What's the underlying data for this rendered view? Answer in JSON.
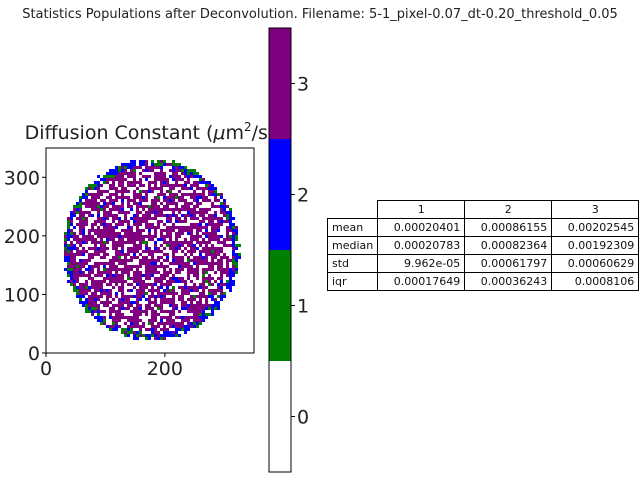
{
  "suptitle": "Statistics Populations after Deconvolution. Filename: 5-1_pixel-0.07_dt-0.20_threshold_0.05",
  "chart_data": [
    {
      "type": "heatmap",
      "title": "Diffusion Constant (μm²/s)",
      "title_parts": {
        "prefix": "Diffusion Constant (",
        "mu": "μ",
        "unit": "m",
        "exp": "2",
        "suffix": "/s)"
      },
      "x_ticks": [
        0,
        200
      ],
      "y_ticks": [
        0,
        100,
        200,
        300
      ],
      "xlim": [
        0,
        350
      ],
      "ylim": [
        0,
        350
      ],
      "grid": false,
      "description_colors": {
        "population_0": "#ffffff",
        "population_1": "#008000",
        "population_2": "#0000ff",
        "population_3": "#800080"
      }
    },
    {
      "type": "colorbar",
      "boundaries": [
        -0.5,
        0.5,
        1.5,
        2.5,
        3.5
      ],
      "ticks": [
        "0",
        "1",
        "2",
        "3"
      ],
      "colors": [
        "#ffffff",
        "#008000",
        "#0000ff",
        "#800080"
      ]
    },
    {
      "type": "table",
      "columns": [
        "1",
        "2",
        "3"
      ],
      "rows": [
        {
          "label": "mean",
          "values": [
            "0.00020401",
            "0.00086155",
            "0.00202545"
          ]
        },
        {
          "label": "median",
          "values": [
            "0.00020783",
            "0.00082364",
            "0.00192309"
          ]
        },
        {
          "label": "std",
          "values": [
            "9.962e-05",
            "0.00061797",
            "0.00060629"
          ]
        },
        {
          "label": "iqr",
          "values": [
            "0.00017649",
            "0.00036243",
            "0.0008106"
          ]
        }
      ]
    }
  ]
}
